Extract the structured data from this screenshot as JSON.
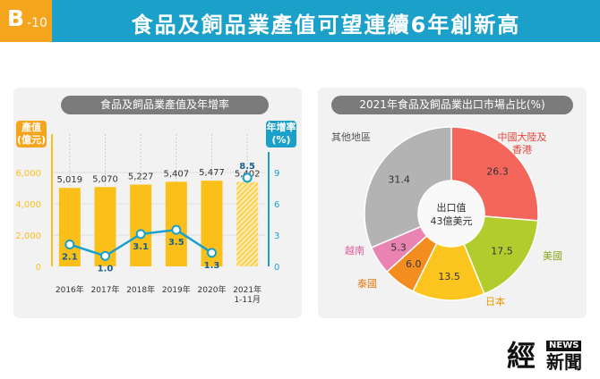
{
  "header": {
    "badge_letter": "B",
    "badge_number": "-10",
    "title": "食品及飼品業產值可望連續6年創新高"
  },
  "colors": {
    "header_bg": "#1aa0c9",
    "badge_bg": "#f5a51b",
    "bar": "#fbbf1a",
    "line": "#1aa0c9",
    "pill": "#7b7b7b"
  },
  "chart_data": [
    {
      "type": "bar",
      "title": "食品及飼品業產值及年增率",
      "categories": [
        "2016年",
        "2017年",
        "2018年",
        "2019年",
        "2020年",
        "2021年\n1-11月"
      ],
      "series": [
        {
          "name": "產值",
          "values": [
            5019,
            5070,
            5227,
            5407,
            5477,
            5402
          ],
          "value_labels": [
            "5,019",
            "5,070",
            "5,227",
            "5,407",
            "5,477",
            "5,402"
          ],
          "axis": "left",
          "last_bar_hatched": true
        },
        {
          "name": "年增率",
          "type": "line",
          "values": [
            2.1,
            1.0,
            3.1,
            3.5,
            1.3,
            8.5
          ],
          "value_labels": [
            "2.1",
            "1.0",
            "3.1",
            "3.5",
            "1.3",
            "8.5"
          ],
          "axis": "right",
          "connect_last_point": false
        }
      ],
      "left_axis": {
        "label_line1": "產值",
        "label_line2": "(億元)",
        "ylim": [
          0,
          6000
        ],
        "ticks": [
          "0",
          "2,000",
          "4,000",
          "6,000"
        ]
      },
      "right_axis": {
        "label_line1": "年增率",
        "label_line2": "(%)",
        "ylim": [
          0,
          9
        ],
        "ticks": [
          "0",
          "3",
          "6",
          "9"
        ]
      }
    },
    {
      "type": "pie",
      "title": "2021年食品及飼品業出口市場占比(%)",
      "donut": true,
      "center_label_line1": "出口值",
      "center_label_line2": "43億美元",
      "slices": [
        {
          "label": "中國大陸及香港",
          "label_line1": "中國大陸及",
          "label_line2": "香港",
          "value": 26.3,
          "value_label": "26.3",
          "color": "#f4665c",
          "label_color": "#e8453a"
        },
        {
          "label": "美國",
          "value": 17.5,
          "value_label": "17.5",
          "color": "#b3cc2d",
          "label_color": "#8aa81a"
        },
        {
          "label": "日本",
          "value": 13.5,
          "value_label": "13.5",
          "color": "#fbc41e",
          "label_color": "#e69a00"
        },
        {
          "label": "泰國",
          "value": 6.0,
          "value_label": "6.0",
          "color": "#f38d1f",
          "label_color": "#e07a10"
        },
        {
          "label": "越南",
          "value": 5.3,
          "value_label": "5.3",
          "color": "#e983b2",
          "label_color": "#e05a9a"
        },
        {
          "label": "其他地區",
          "value": 31.4,
          "value_label": "31.4",
          "color": "#b3b3b3",
          "label_color": "#555555"
        }
      ]
    }
  ],
  "logo": {
    "main": "經",
    "news": "NEWS",
    "sub": "新聞"
  }
}
